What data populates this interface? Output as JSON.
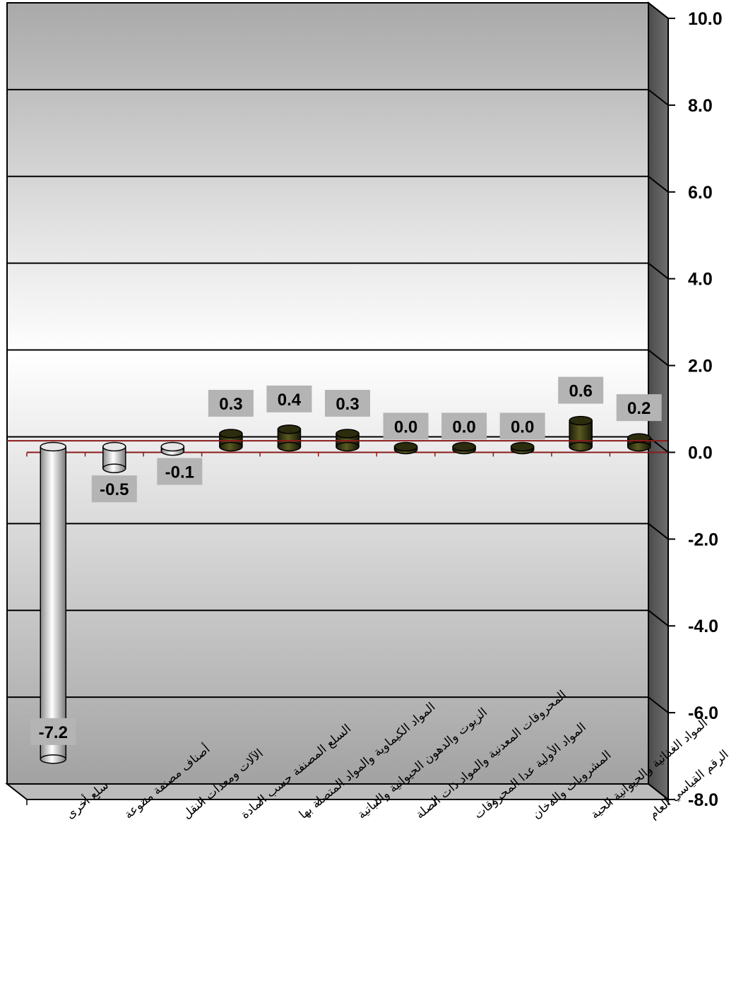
{
  "chart_data": {
    "type": "bar",
    "style": "3d-cylinder",
    "categories": [
      "سلع أخرى",
      "أصناف مصنفة متنوعة",
      "الآلات ومعدات النقل",
      "السلع المصنفة حسب المادة",
      "المواد الكيماوية والمواد المتصلة بها",
      "الزيوت والدهون الحيوانية والنباتية",
      "المحروقات المعدنية والمواد ذات الصلة",
      "المواد الأولية عدا المحروقات",
      "المشروبات والدخان",
      "المواد الغذائية والحيوانية الحية",
      "الرقم القياسي العام"
    ],
    "values": [
      -7.2,
      -0.5,
      -0.1,
      0.3,
      0.4,
      0.3,
      0.0,
      0.0,
      0.0,
      0.6,
      0.2
    ],
    "value_labels": [
      "-7.2",
      "-0.5",
      "-0.1",
      "0.3",
      "0.4",
      "0.3",
      "0.0",
      "0.0",
      "0.0",
      "0.6",
      "0.2"
    ],
    "ylim": [
      -8.0,
      10.0
    ],
    "yticks": [
      "10.0",
      "8.0",
      "6.0",
      "4.0",
      "2.0",
      "0.0",
      "-2.0",
      "-4.0",
      "-6.0",
      "-8.0"
    ],
    "ytick_values": [
      10,
      8,
      6,
      4,
      2,
      0,
      -2,
      -4,
      -6,
      -8
    ],
    "y_axis_position": "right",
    "grid": true,
    "colors": {
      "positive": "#3a3a12",
      "negative": "#f2f2f2",
      "reference_line": "#8b1a1a",
      "label_box": "#b4b4b4"
    }
  }
}
